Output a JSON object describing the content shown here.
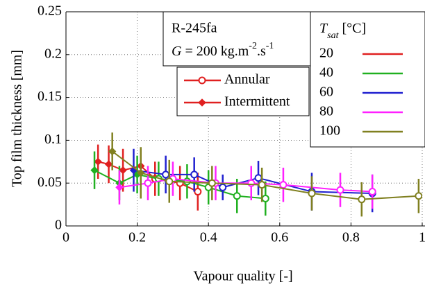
{
  "chart_data": {
    "type": "errorbar-line",
    "x_label": "Vapour quality [-]",
    "y_label": "Top film thickness [mm]",
    "xlim": [
      0,
      1
    ],
    "ylim": [
      0,
      0.25
    ],
    "xticks": [
      0,
      0.2,
      0.4,
      0.6,
      0.8,
      1
    ],
    "yticks": [
      0,
      0.05,
      0.1,
      0.15,
      0.2,
      0.25
    ],
    "grid": true,
    "info_box": {
      "fluid": "R-245fa",
      "flux_parts": [
        "G",
        " = 200 kg.m",
        "-2",
        ".s",
        "-1"
      ]
    },
    "regime_legend": [
      {
        "name": "Annular",
        "marker": "circle",
        "color": "#e02020"
      },
      {
        "name": "Intermittent",
        "marker": "diamond",
        "color": "#e02020"
      }
    ],
    "legend_title_parts": [
      "T",
      "sat",
      " [°C]"
    ],
    "series": [
      {
        "name": "20",
        "color": "#e02020",
        "x": [
          0.09,
          0.12,
          0.16,
          0.21,
          0.25,
          0.32,
          0.37
        ],
        "values": [
          0.075,
          0.072,
          0.065,
          0.07,
          0.055,
          0.05,
          0.04
        ],
        "errors": [
          0.02,
          0.022,
          0.025,
          0.02,
          0.02,
          0.02,
          0.022
        ],
        "markers": [
          "diamond",
          "diamond",
          "diamond",
          "diamond",
          "circle",
          "circle",
          "circle"
        ]
      },
      {
        "name": "40",
        "color": "#20b020",
        "x": [
          0.08,
          0.15,
          0.2,
          0.26,
          0.34,
          0.4,
          0.48,
          0.56
        ],
        "values": [
          0.065,
          0.05,
          0.06,
          0.055,
          0.052,
          0.045,
          0.035,
          0.032
        ],
        "errors": [
          0.022,
          0.02,
          0.022,
          0.02,
          0.02,
          0.02,
          0.02,
          0.02
        ],
        "markers": [
          "diamond",
          "diamond",
          "diamond",
          "circle",
          "circle",
          "circle",
          "circle",
          "circle"
        ]
      },
      {
        "name": "60",
        "color": "#2020d0",
        "x": [
          0.19,
          0.28,
          0.36,
          0.44,
          0.54,
          0.69,
          0.86
        ],
        "values": [
          0.065,
          0.06,
          0.06,
          0.045,
          0.056,
          0.04,
          0.038
        ],
        "errors": [
          0.025,
          0.022,
          0.02,
          0.015,
          0.02,
          0.022,
          0.022
        ],
        "markers": [
          "diamond",
          "circle",
          "circle",
          "circle",
          "circle",
          "circle",
          "circle"
        ]
      },
      {
        "name": "80",
        "color": "#ff20ff",
        "x": [
          0.15,
          0.23,
          0.3,
          0.42,
          0.52,
          0.61,
          0.77,
          0.86
        ],
        "values": [
          0.045,
          0.05,
          0.055,
          0.05,
          0.05,
          0.048,
          0.042,
          0.04
        ],
        "errors": [
          0.02,
          0.02,
          0.02,
          0.02,
          0.02,
          0.02,
          0.02,
          0.02
        ],
        "markers": [
          "diamond",
          "circle",
          "circle",
          "circle",
          "circle",
          "circle",
          "circle",
          "circle"
        ]
      },
      {
        "name": "100",
        "color": "#808020",
        "x": [
          0.13,
          0.21,
          0.29,
          0.41,
          0.55,
          0.69,
          0.83,
          0.99
        ],
        "values": [
          0.087,
          0.062,
          0.052,
          0.05,
          0.048,
          0.038,
          0.031,
          0.035
        ],
        "errors": [
          0.022,
          0.03,
          0.025,
          0.02,
          0.02,
          0.02,
          0.02,
          0.02
        ],
        "markers": [
          "diamond",
          "diamond",
          "circle",
          "circle",
          "circle",
          "circle",
          "circle",
          "circle"
        ]
      }
    ]
  }
}
